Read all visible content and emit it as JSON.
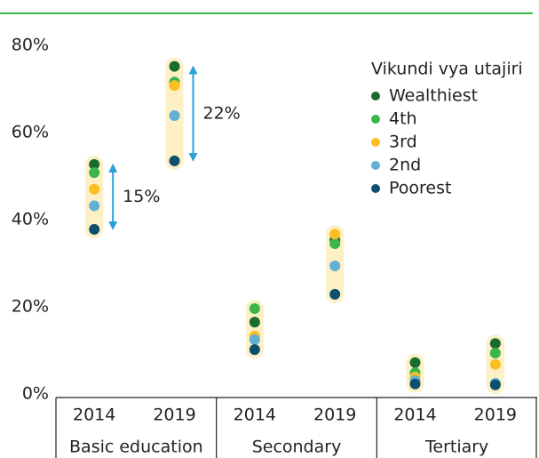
{
  "chart_data": {
    "type": "dot",
    "legend_title": "Vikundi vya utajiri",
    "groups": [
      "Basic education",
      "Secondary",
      "Tertiary"
    ],
    "categories": [
      "2014",
      "2019",
      "2014",
      "2019",
      "2014",
      "2019"
    ],
    "series": [
      {
        "name": "Wealthiest",
        "color": "#1a6b2e",
        "values": [
          53.5,
          76,
          17.3,
          36.1,
          8,
          12.4
        ]
      },
      {
        "name": "4th",
        "color": "#3cb54a",
        "values": [
          51.6,
          72.4,
          20.4,
          35.3,
          5.7,
          10.2
        ]
      },
      {
        "name": "3rd",
        "color": "#fbbf24",
        "values": [
          47.8,
          71.6,
          14.1,
          37.5,
          4.7,
          7.6
        ]
      },
      {
        "name": "2nd",
        "color": "#62b0d6",
        "values": [
          44,
          64.7,
          13.3,
          30.2,
          3.9,
          3.3
        ]
      },
      {
        "name": "Poorest",
        "color": "#0e4f6e",
        "values": [
          38.6,
          54.3,
          11,
          23.7,
          3.1,
          2.9
        ]
      }
    ],
    "ylim": [
      0,
      80
    ],
    "yticks": [
      {
        "value": 0,
        "label": "0%"
      },
      {
        "value": 20,
        "label": "20%"
      },
      {
        "value": 40,
        "label": "40%"
      },
      {
        "value": 60,
        "label": "60%"
      },
      {
        "value": 80,
        "label": "80%"
      }
    ],
    "annotations": [
      {
        "text": "15%",
        "group": "Basic education",
        "year": "2014"
      },
      {
        "text": "22%",
        "group": "Basic education",
        "year": "2019"
      }
    ],
    "band_color": "#fdf0c4",
    "arrow_color": "#2a9fd8"
  }
}
